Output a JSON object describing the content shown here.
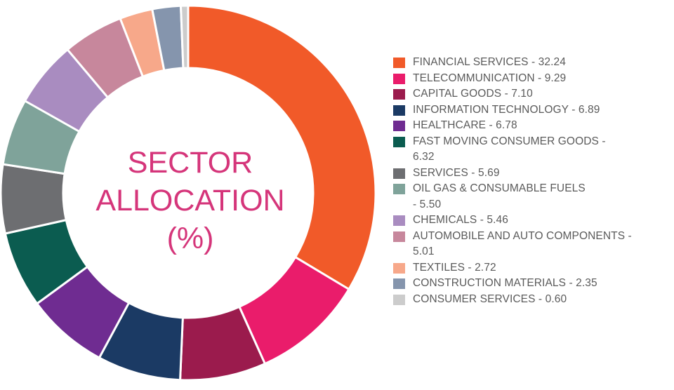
{
  "chart_data": {
    "type": "pie",
    "title": "SECTOR ALLOCATION (%)",
    "title_lines": [
      "SECTOR",
      "ALLOCATION",
      "(%)"
    ],
    "legend_position": "right",
    "categories": [
      "FINANCIAL SERVICES",
      "TELECOMMUNICATION",
      "CAPITAL GOODS",
      "INFORMATION TECHNOLOGY",
      "HEALTHCARE",
      "FAST MOVING CONSUMER GOODS",
      "SERVICES",
      "OIL GAS & CONSUMABLE FUELS",
      "CHEMICALS",
      "AUTOMOBILE AND AUTO COMPONENTS",
      "TEXTILES",
      "CONSTRUCTION MATERIALS",
      "CONSUMER SERVICES"
    ],
    "values": [
      32.24,
      9.29,
      7.1,
      6.89,
      6.78,
      6.32,
      5.69,
      5.5,
      5.46,
      5.01,
      2.72,
      2.35,
      0.6
    ],
    "colors": [
      "#f15a29",
      "#ea1c6b",
      "#9b1b4d",
      "#1b3a64",
      "#6f2c91",
      "#0b5c50",
      "#6d6e71",
      "#7fa39a",
      "#a98cc0",
      "#c7879c",
      "#f7a88a",
      "#8595ad",
      "#cccccc"
    ],
    "legend_labels": [
      [
        "FINANCIAL SERVICES - 32.24"
      ],
      [
        "TELECOMMUNICATION - 9.29"
      ],
      [
        "CAPITAL GOODS - 7.10"
      ],
      [
        "INFORMATION TECHNOLOGY - 6.89"
      ],
      [
        "HEALTHCARE - 6.78"
      ],
      [
        "FAST MOVING CONSUMER GOODS -",
        "6.32"
      ],
      [
        "SERVICES - 5.69"
      ],
      [
        "OIL GAS & CONSUMABLE FUELS",
        "- 5.50"
      ],
      [
        "CHEMICALS - 5.46"
      ],
      [
        "AUTOMOBILE AND AUTO COMPONENTS -",
        "5.01"
      ],
      [
        "TEXTILES - 2.72"
      ],
      [
        "CONSTRUCTION MATERIALS - 2.35"
      ],
      [
        "CONSUMER SERVICES - 0.60"
      ]
    ]
  }
}
